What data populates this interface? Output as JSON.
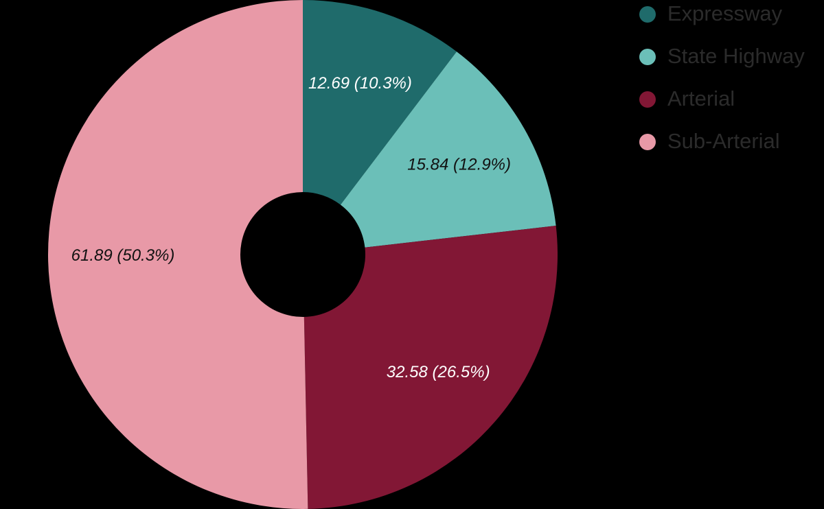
{
  "chart_data": {
    "type": "pie",
    "categories": [
      "Expressway",
      "State Highway",
      "Arterial",
      "Sub-Arterial"
    ],
    "values": [
      12.69,
      15.84,
      32.58,
      61.89
    ],
    "value_labels": [
      "12.69 (10.3%)",
      "15.84 (12.9%)",
      "32.58 (26.5%)",
      "61.89 (50.3%)"
    ],
    "colors": [
      "#1f6b6b",
      "#6bbfb8",
      "#821735",
      "#e899a7"
    ],
    "donut": true,
    "legend": "right"
  }
}
